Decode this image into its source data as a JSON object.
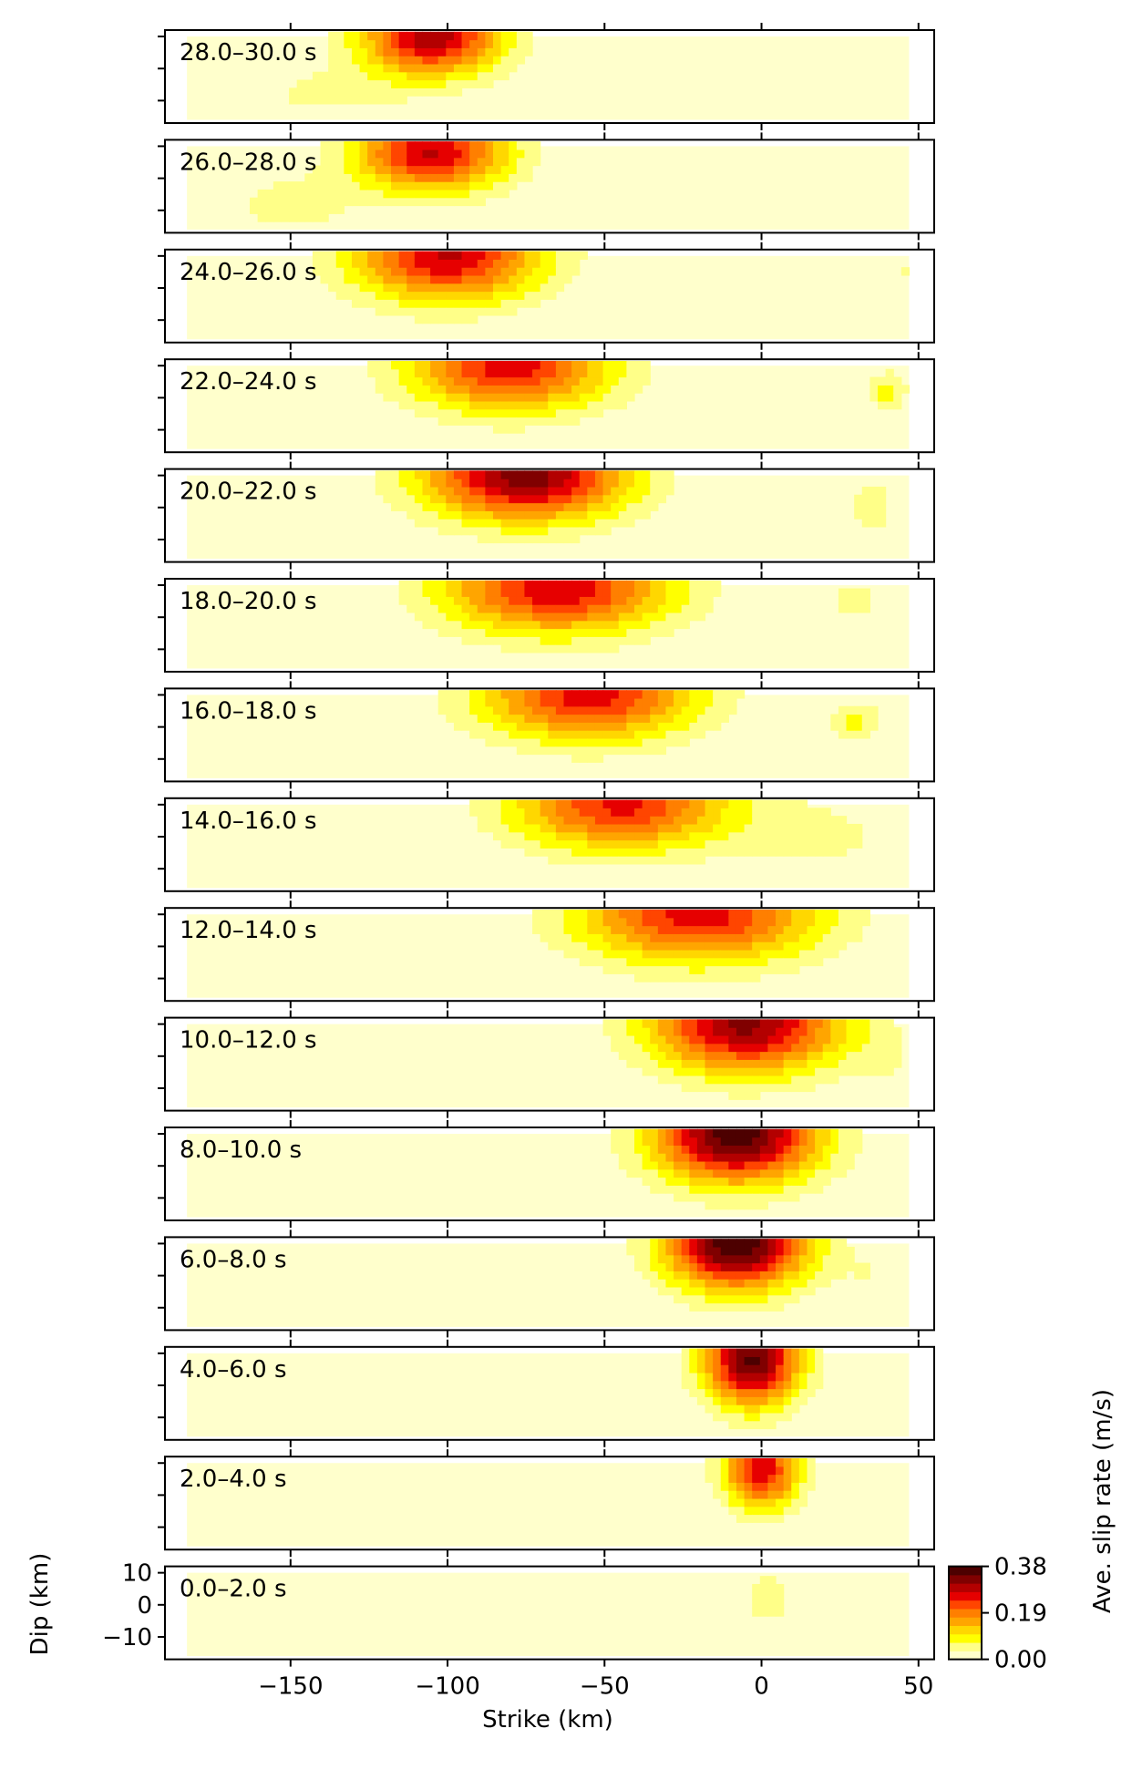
{
  "chart_data": {
    "type": "heatmap",
    "description_of_layout": "",
    "xlabel": "Strike (km)",
    "ylabel": "Dip (km)",
    "xlim": [
      -190,
      55
    ],
    "ylim": [
      -17,
      12
    ],
    "x_ticks": [
      -150,
      -100,
      -50,
      0,
      50
    ],
    "x_tick_labels": [
      "−150",
      "−100",
      "−50",
      "0",
      "50"
    ],
    "y_ticks": [
      10,
      0,
      -10
    ],
    "y_tick_labels": [
      "10",
      "0",
      "−10"
    ],
    "fault_extent_strike": [
      -183,
      47
    ],
    "fault_extent_dip": [
      -16,
      10
    ],
    "colorbar": {
      "label": "Ave. slip rate (m/s)",
      "min": 0.0,
      "max": 0.38,
      "tick_values": [
        0.38,
        0.19,
        0.0
      ],
      "tick_labels": [
        "0.38",
        "0.19",
        "0.00"
      ],
      "colors": [
        "#ffffcc",
        "#ffff88",
        "#ffff00",
        "#ffd700",
        "#ffa500",
        "#ff7f00",
        "#ff4500",
        "#e60000",
        "#b30000",
        "#800000",
        "#4d0000"
      ]
    },
    "panels": [
      {
        "label": "28.0–30.0 s",
        "peaks": [
          {
            "x": -105,
            "y": 10,
            "a": 0.3,
            "sx": 22,
            "sy": 12
          },
          {
            "x": -140,
            "y": -8,
            "a": 0.04,
            "sx": 30,
            "sy": 10
          }
        ]
      },
      {
        "label": "26.0–28.0 s",
        "peaks": [
          {
            "x": -105,
            "y": 8,
            "a": 0.28,
            "sx": 24,
            "sy": 12
          },
          {
            "x": -150,
            "y": -8,
            "a": 0.05,
            "sx": 22,
            "sy": 10
          }
        ]
      },
      {
        "label": "24.0–26.0 s",
        "peaks": [
          {
            "x": -100,
            "y": 10,
            "a": 0.28,
            "sx": 30,
            "sy": 14
          },
          {
            "x": 45,
            "y": 5,
            "a": 0.04,
            "sx": 4,
            "sy": 6
          }
        ]
      },
      {
        "label": "22.0–24.0 s",
        "peaks": [
          {
            "x": -80,
            "y": 10,
            "a": 0.26,
            "sx": 32,
            "sy": 14
          },
          {
            "x": 40,
            "y": 2,
            "a": 0.09,
            "sx": 6,
            "sy": 6
          }
        ]
      },
      {
        "label": "20.0–22.0 s",
        "peaks": [
          {
            "x": -75,
            "y": 10,
            "a": 0.33,
            "sx": 32,
            "sy": 14
          },
          {
            "x": 35,
            "y": 0,
            "a": 0.05,
            "sx": 8,
            "sy": 12
          }
        ]
      },
      {
        "label": "18.0–20.0 s",
        "peaks": [
          {
            "x": -65,
            "y": 9,
            "a": 0.27,
            "sx": 36,
            "sy": 14
          },
          {
            "x": 30,
            "y": 5,
            "a": 0.04,
            "sx": 14,
            "sy": 12
          }
        ]
      },
      {
        "label": "16.0–18.0 s",
        "peaks": [
          {
            "x": -55,
            "y": 10,
            "a": 0.26,
            "sx": 34,
            "sy": 14
          },
          {
            "x": 30,
            "y": 2,
            "a": 0.08,
            "sx": 8,
            "sy": 6
          }
        ]
      },
      {
        "label": "14.0–16.0 s",
        "peaks": [
          {
            "x": -45,
            "y": 10,
            "a": 0.25,
            "sx": 34,
            "sy": 14
          },
          {
            "x": 20,
            "y": 0,
            "a": 0.04,
            "sx": 30,
            "sy": 14
          }
        ]
      },
      {
        "label": "12.0–14.0 s",
        "peaks": [
          {
            "x": -20,
            "y": 10,
            "a": 0.26,
            "sx": 38,
            "sy": 15
          }
        ]
      },
      {
        "label": "10.0–12.0 s",
        "peaks": [
          {
            "x": -5,
            "y": 10,
            "a": 0.32,
            "sx": 30,
            "sy": 15
          },
          {
            "x": 40,
            "y": 0,
            "a": 0.03,
            "sx": 10,
            "sy": 10
          }
        ]
      },
      {
        "label": "8.0–10.0 s",
        "peaks": [
          {
            "x": -8,
            "y": 10,
            "a": 0.37,
            "sx": 26,
            "sy": 15
          }
        ]
      },
      {
        "label": "6.0–8.0 s",
        "peaks": [
          {
            "x": -8,
            "y": 10,
            "a": 0.38,
            "sx": 22,
            "sy": 14
          },
          {
            "x": 35,
            "y": 0,
            "a": 0.03,
            "sx": 10,
            "sy": 10
          }
        ]
      },
      {
        "label": "4.0–6.0 s",
        "peaks": [
          {
            "x": -3,
            "y": 8,
            "a": 0.35,
            "sx": 15,
            "sy": 14
          }
        ]
      },
      {
        "label": "2.0–4.0 s",
        "peaks": [
          {
            "x": 0,
            "y": 8,
            "a": 0.27,
            "sx": 12,
            "sy": 12
          }
        ]
      },
      {
        "label": "0.0–2.0 s",
        "peaks": [
          {
            "x": 2,
            "y": 2,
            "a": 0.045,
            "sx": 11,
            "sy": 12
          }
        ]
      }
    ]
  }
}
